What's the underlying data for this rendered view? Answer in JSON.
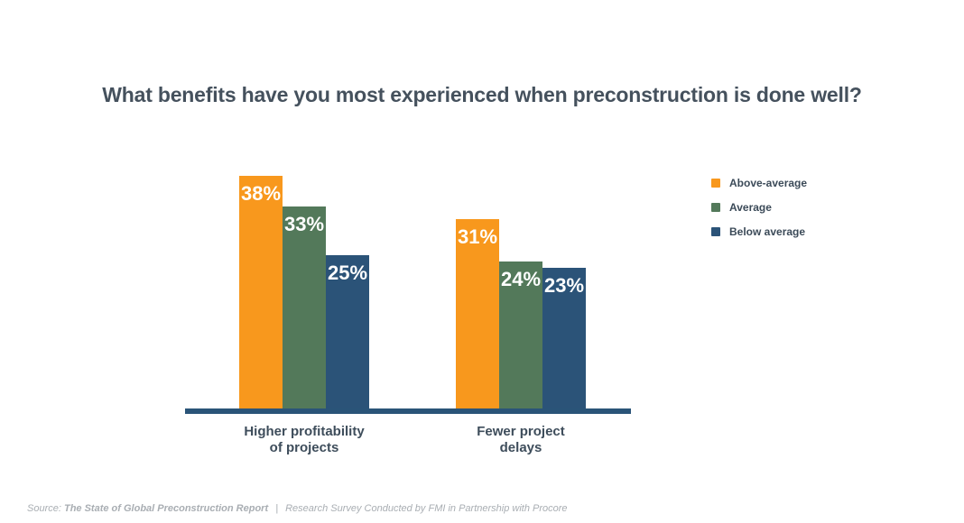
{
  "chart_data": {
    "type": "bar",
    "title": "What benefits have you most experienced when preconstruction is done well?",
    "categories": [
      "Higher profitability of projects",
      "Fewer project delays"
    ],
    "category_lines": [
      [
        "Higher profitability",
        "of projects"
      ],
      [
        "Fewer project",
        "delays"
      ]
    ],
    "series": [
      {
        "name": "Above-average",
        "color": "#F8981D",
        "values": [
          38,
          31
        ]
      },
      {
        "name": "Average",
        "color": "#53795A",
        "values": [
          33,
          24
        ]
      },
      {
        "name": "Below average",
        "color": "#2B5378",
        "values": [
          25,
          23
        ]
      }
    ],
    "value_suffix": "%",
    "data_labels": "inside-top",
    "xlabel": "",
    "ylabel": "",
    "ylim": [
      0,
      40
    ],
    "grid": false,
    "y_axis_visible": false,
    "legend_position": "right"
  },
  "colors": {
    "above_average_bar": "#F8981D",
    "average_bar": "#53795A",
    "below_average_bar": "#2B5378",
    "axis_line": "#2A5478",
    "title_text": "#45515D",
    "category_label_text": "#3E4D5B",
    "legend_text": "#3B4A58",
    "bar_value_text": "#FFFFFF",
    "source_text": "#A9AEB3"
  },
  "source": {
    "prefix": "Source:",
    "report": "The State of Global Preconstruction Report",
    "separator": "|",
    "suffix": "Research Survey Conducted by FMI in Partnership with Procore"
  }
}
